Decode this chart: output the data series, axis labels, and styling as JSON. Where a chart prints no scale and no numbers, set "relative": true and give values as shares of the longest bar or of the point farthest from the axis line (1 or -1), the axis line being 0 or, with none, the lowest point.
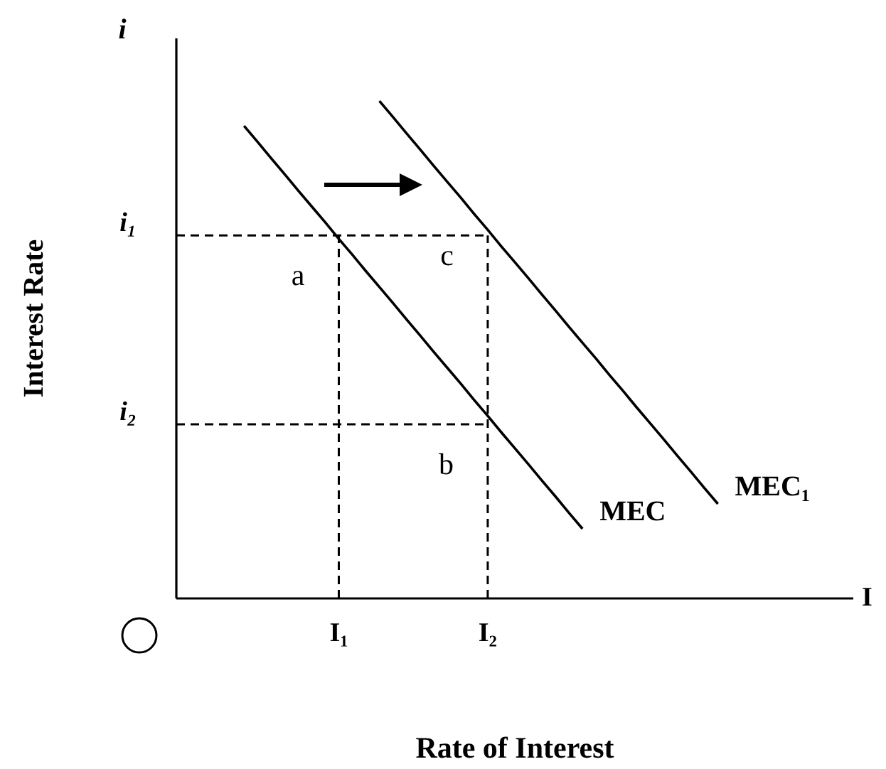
{
  "chart_data": {
    "type": "line",
    "relative": true,
    "xlabel": "Rate of Interest",
    "ylabel": "Interest Rate",
    "categories": [
      null,
      null,
      null,
      null,
      null,
      null,
      null,
      null,
      null,
      null,
      null,
      null,
      "I₁",
      null,
      null,
      null,
      null,
      null,
      null,
      null,
      null,
      null,
      null,
      "I₂",
      null,
      null,
      null,
      null,
      null,
      null,
      null,
      null,
      null,
      null,
      null,
      null,
      null,
      null,
      null,
      null,
      null,
      null,
      null,
      null,
      null,
      null,
      null,
      null,
      null,
      null,
      null
    ],
    "series": [
      {
        "name": "MEC",
        "color": "#000000",
        "values": [
          null,
          null,
          null,
          null,
          null,
          0.95,
          0.918,
          0.885,
          0.853,
          0.82,
          0.788,
          0.756,
          0.723,
          0.691,
          0.658,
          0.626,
          0.594,
          0.561,
          0.529,
          0.496,
          0.464,
          0.432,
          0.399,
          0.367,
          0.334,
          0.302,
          0.27,
          0.237,
          0.205,
          0.172,
          0.14,
          null,
          null,
          null,
          null,
          null,
          null,
          null,
          null,
          null,
          null,
          null,
          null,
          null,
          null,
          null,
          null,
          null,
          null,
          null,
          null
        ]
      },
      {
        "name": "MEC₁",
        "color": "#000000",
        "values": [
          null,
          null,
          null,
          null,
          null,
          null,
          null,
          null,
          null,
          null,
          null,
          null,
          null,
          null,
          null,
          1,
          0.968,
          0.935,
          0.903,
          0.87,
          0.838,
          0.806,
          0.773,
          0.741,
          0.708,
          0.676,
          0.644,
          0.611,
          0.579,
          0.546,
          0.514,
          0.482,
          0.449,
          0.417,
          0.384,
          0.352,
          0.32,
          0.287,
          0.255,
          0.222,
          0.19,
          null,
          null,
          null,
          null,
          null,
          null,
          null,
          null,
          null,
          null
        ]
      }
    ],
    "ref_lines": [
      {
        "axis": "y",
        "value": 0.73,
        "label": "i₁",
        "color": "#000000",
        "line_style": "dashed"
      },
      {
        "axis": "y",
        "value": 0.35,
        "label": "i₂",
        "color": "#000000",
        "line_style": "dashed"
      },
      {
        "axis": "x",
        "value": "I₁",
        "color": "#000000",
        "line_style": "dashed"
      },
      {
        "axis": "x",
        "value": "I₂",
        "color": "#000000",
        "line_style": "dashed"
      }
    ],
    "annotations": [
      "i",
      "I",
      {
        "text": "a",
        "x": "I₁",
        "y": 0.65
      },
      {
        "text": "c",
        "x": "I₂",
        "y": 0.69
      },
      {
        "text": "b",
        "x": "I₂",
        "y": 0.27
      }
    ]
  }
}
